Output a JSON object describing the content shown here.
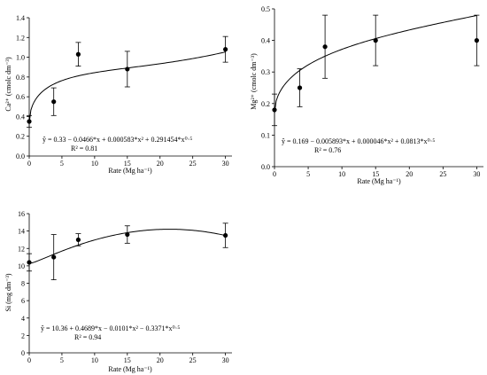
{
  "chart_data": [
    {
      "type": "scatter",
      "ylabel": "Ca²⁺ (cmolc dm⁻³)",
      "xlabel": "Rate (Mg ha⁻¹)",
      "xlim": [
        0,
        31
      ],
      "ylim": [
        0,
        1.4
      ],
      "xticks": [
        0,
        5,
        10,
        15,
        20,
        25,
        30
      ],
      "yticks": [
        0,
        0.2,
        0.4,
        0.6,
        0.8,
        1.0,
        1.2,
        1.4
      ],
      "ytick_labels": [
        "0.0",
        "0.2",
        "0.4",
        "0.6",
        "0.8",
        "1.0",
        "1.2",
        "1.4"
      ],
      "points": [
        {
          "x": 0,
          "y": 0.35,
          "err": 0.06
        },
        {
          "x": 3.75,
          "y": 0.55,
          "err": 0.14
        },
        {
          "x": 7.5,
          "y": 1.03,
          "err": 0.12
        },
        {
          "x": 15,
          "y": 0.88,
          "err": 0.18
        },
        {
          "x": 30,
          "y": 1.08,
          "err": 0.13
        }
      ],
      "fit": {
        "c0": 0.33,
        "c1": -0.0466,
        "c2": 0.000583,
        "c3": 0.291454
      },
      "equation": "ŷ = 0.33 − 0.0466*x + 0.000583*x² + 0.291454*x⁰·⁵",
      "r2": "R² = 0.81"
    },
    {
      "type": "scatter",
      "ylabel": "Mg²⁺ (cmolc dm⁻³)",
      "xlabel": "Rate (Mg ha⁻¹)",
      "xlim": [
        0,
        31
      ],
      "ylim": [
        0,
        0.5
      ],
      "xticks": [
        0,
        5,
        10,
        15,
        20,
        25,
        30
      ],
      "yticks": [
        0,
        0.1,
        0.2,
        0.3,
        0.4,
        0.5
      ],
      "ytick_labels": [
        "0.0",
        "0.1",
        "0.2",
        "0.3",
        "0.4",
        "0.5"
      ],
      "points": [
        {
          "x": 0,
          "y": 0.18,
          "err": 0.05
        },
        {
          "x": 3.75,
          "y": 0.25,
          "err": 0.06
        },
        {
          "x": 7.5,
          "y": 0.38,
          "err": 0.1
        },
        {
          "x": 15,
          "y": 0.4,
          "err": 0.08
        },
        {
          "x": 30,
          "y": 0.4,
          "err": 0.08
        }
      ],
      "fit": {
        "c0": 0.169,
        "c1": -0.005893,
        "c2": 4.6e-05,
        "c3": 0.0813
      },
      "equation": "ŷ = 0.169 − 0.005893*x + 0.000046*x² + 0.0813*x⁰·⁵",
      "r2": "R² = 0.76"
    },
    {
      "type": "scatter",
      "ylabel": "Si (mg dm⁻³)",
      "xlabel": "Rate (Mg ha⁻¹)",
      "xlim": [
        0,
        31
      ],
      "ylim": [
        0,
        16
      ],
      "xticks": [
        0,
        5,
        10,
        15,
        20,
        25,
        30
      ],
      "yticks": [
        0,
        2,
        4,
        6,
        8,
        10,
        12,
        14,
        16
      ],
      "ytick_labels": [
        "0",
        "2",
        "4",
        "6",
        "8",
        "10",
        "12",
        "14",
        "16"
      ],
      "points": [
        {
          "x": 0,
          "y": 10.4,
          "err": 1.0
        },
        {
          "x": 3.75,
          "y": 11.0,
          "err": 2.6
        },
        {
          "x": 7.5,
          "y": 13.0,
          "err": 0.7
        },
        {
          "x": 15,
          "y": 13.6,
          "err": 1.0
        },
        {
          "x": 30,
          "y": 13.5,
          "err": 1.4
        }
      ],
      "fit": {
        "c0": 10.36,
        "c1": 0.4689,
        "c2": -0.0101,
        "c3": -0.3371
      },
      "equation": "ŷ = 10.36 + 0.4689*x − 0.0101*x² − 0.3371*x⁰·⁵",
      "r2": "R² = 0.94"
    }
  ]
}
